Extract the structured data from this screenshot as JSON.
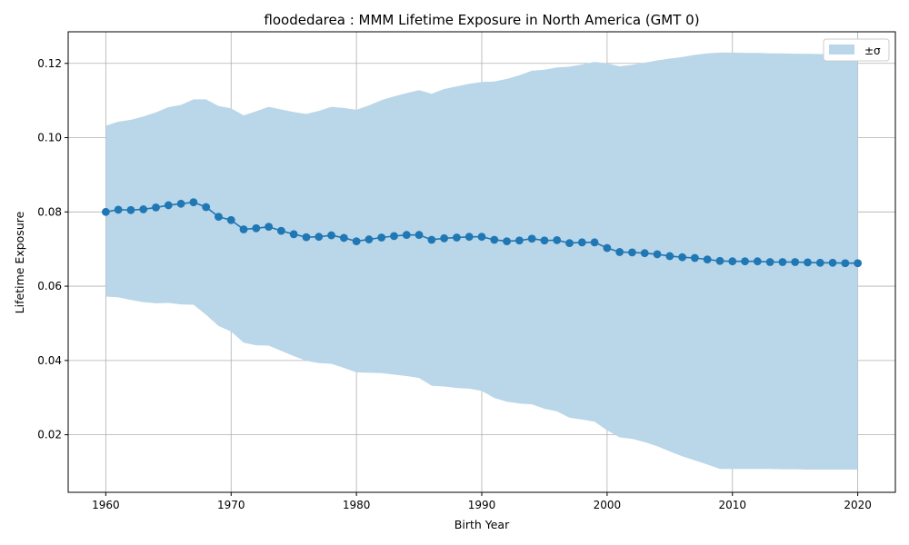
{
  "chart_data": {
    "type": "line",
    "title": "floodedarea : MMM Lifetime Exposure in North America (GMT 0)",
    "xlabel": "Birth Year",
    "ylabel": "Lifetime Exposure",
    "xlim": [
      1957,
      2023
    ],
    "ylim": [
      0.0045,
      0.1285
    ],
    "x_ticks": [
      1960,
      1970,
      1980,
      1990,
      2000,
      2010,
      2020
    ],
    "y_ticks": [
      0.02,
      0.04,
      0.06,
      0.08,
      0.1,
      0.12
    ],
    "y_tick_labels": [
      "0.02",
      "0.04",
      "0.06",
      "0.08",
      "0.10",
      "0.12"
    ],
    "grid": true,
    "legend_position": "top-right",
    "colors": {
      "line": "#1f77b4",
      "band": "#bad6e9",
      "grid": "#b0b0b0",
      "axis": "#000000"
    },
    "series": [
      {
        "type": "line",
        "marker": "circle",
        "x": [
          1960,
          1961,
          1962,
          1963,
          1964,
          1965,
          1966,
          1967,
          1968,
          1969,
          1970,
          1971,
          1972,
          1973,
          1974,
          1975,
          1976,
          1977,
          1978,
          1979,
          1980,
          1981,
          1982,
          1983,
          1984,
          1985,
          1986,
          1987,
          1988,
          1989,
          1990,
          1991,
          1992,
          1993,
          1994,
          1995,
          1996,
          1997,
          1998,
          1999,
          2000,
          2001,
          2002,
          2003,
          2004,
          2005,
          2006,
          2007,
          2008,
          2009,
          2010,
          2011,
          2012,
          2013,
          2014,
          2015,
          2016,
          2017,
          2018,
          2019,
          2020
        ],
        "y": [
          0.08,
          0.0806,
          0.0805,
          0.0807,
          0.0812,
          0.0818,
          0.0822,
          0.0826,
          0.0813,
          0.0787,
          0.0778,
          0.0753,
          0.0756,
          0.076,
          0.0749,
          0.074,
          0.0732,
          0.0733,
          0.0737,
          0.073,
          0.0721,
          0.0726,
          0.0731,
          0.0735,
          0.0738,
          0.0738,
          0.0725,
          0.0729,
          0.0731,
          0.0733,
          0.0733,
          0.0725,
          0.0721,
          0.0723,
          0.0728,
          0.0723,
          0.0724,
          0.0716,
          0.0718,
          0.0718,
          0.0703,
          0.0692,
          0.0691,
          0.0689,
          0.0686,
          0.0681,
          0.0678,
          0.0676,
          0.0672,
          0.0668,
          0.0667,
          0.0667,
          0.0667,
          0.0665,
          0.0665,
          0.0665,
          0.0664,
          0.0663,
          0.0663,
          0.0662,
          0.0662
        ]
      },
      {
        "type": "area",
        "name": "±σ",
        "x": [
          1960,
          1961,
          1962,
          1963,
          1964,
          1965,
          1966,
          1967,
          1968,
          1969,
          1970,
          1971,
          1972,
          1973,
          1974,
          1975,
          1976,
          1977,
          1978,
          1979,
          1980,
          1981,
          1982,
          1983,
          1984,
          1985,
          1986,
          1987,
          1988,
          1989,
          1990,
          1991,
          1992,
          1993,
          1994,
          1995,
          1996,
          1997,
          1998,
          1999,
          2000,
          2001,
          2002,
          2003,
          2004,
          2005,
          2006,
          2007,
          2008,
          2009,
          2010,
          2011,
          2012,
          2013,
          2014,
          2015,
          2016,
          2017,
          2018,
          2019,
          2020
        ],
        "upper": [
          0.1032,
          0.1043,
          0.1048,
          0.1057,
          0.1068,
          0.1082,
          0.1088,
          0.1103,
          0.1103,
          0.1085,
          0.1079,
          0.106,
          0.1071,
          0.1083,
          0.1076,
          0.1069,
          0.1064,
          0.1072,
          0.1083,
          0.108,
          0.1075,
          0.1087,
          0.1101,
          0.1111,
          0.112,
          0.1128,
          0.1118,
          0.1131,
          0.1138,
          0.1145,
          0.115,
          0.1151,
          0.1158,
          0.1168,
          0.118,
          0.1183,
          0.1189,
          0.1191,
          0.1197,
          0.1204,
          0.12,
          0.1192,
          0.1196,
          0.1202,
          0.1208,
          0.1213,
          0.1217,
          0.1223,
          0.1227,
          0.1229,
          0.1229,
          0.1228,
          0.1228,
          0.1227,
          0.1227,
          0.1226,
          0.1226,
          0.1225,
          0.1225,
          0.1224,
          0.1224
        ],
        "lower": [
          0.0572,
          0.057,
          0.0563,
          0.0557,
          0.0554,
          0.0555,
          0.0551,
          0.055,
          0.0523,
          0.0493,
          0.0478,
          0.0448,
          0.0441,
          0.044,
          0.0426,
          0.0412,
          0.0399,
          0.0393,
          0.0391,
          0.038,
          0.0368,
          0.0367,
          0.0366,
          0.0362,
          0.0358,
          0.0353,
          0.0332,
          0.033,
          0.0326,
          0.0324,
          0.0318,
          0.0299,
          0.0289,
          0.0284,
          0.0282,
          0.027,
          0.0263,
          0.0246,
          0.0241,
          0.0235,
          0.0212,
          0.0193,
          0.0189,
          0.018,
          0.0169,
          0.0155,
          0.0142,
          0.0131,
          0.012,
          0.0108,
          0.0108,
          0.0108,
          0.0108,
          0.0108,
          0.0107,
          0.0107,
          0.0106,
          0.0106,
          0.0106,
          0.0106,
          0.0106
        ]
      }
    ]
  }
}
